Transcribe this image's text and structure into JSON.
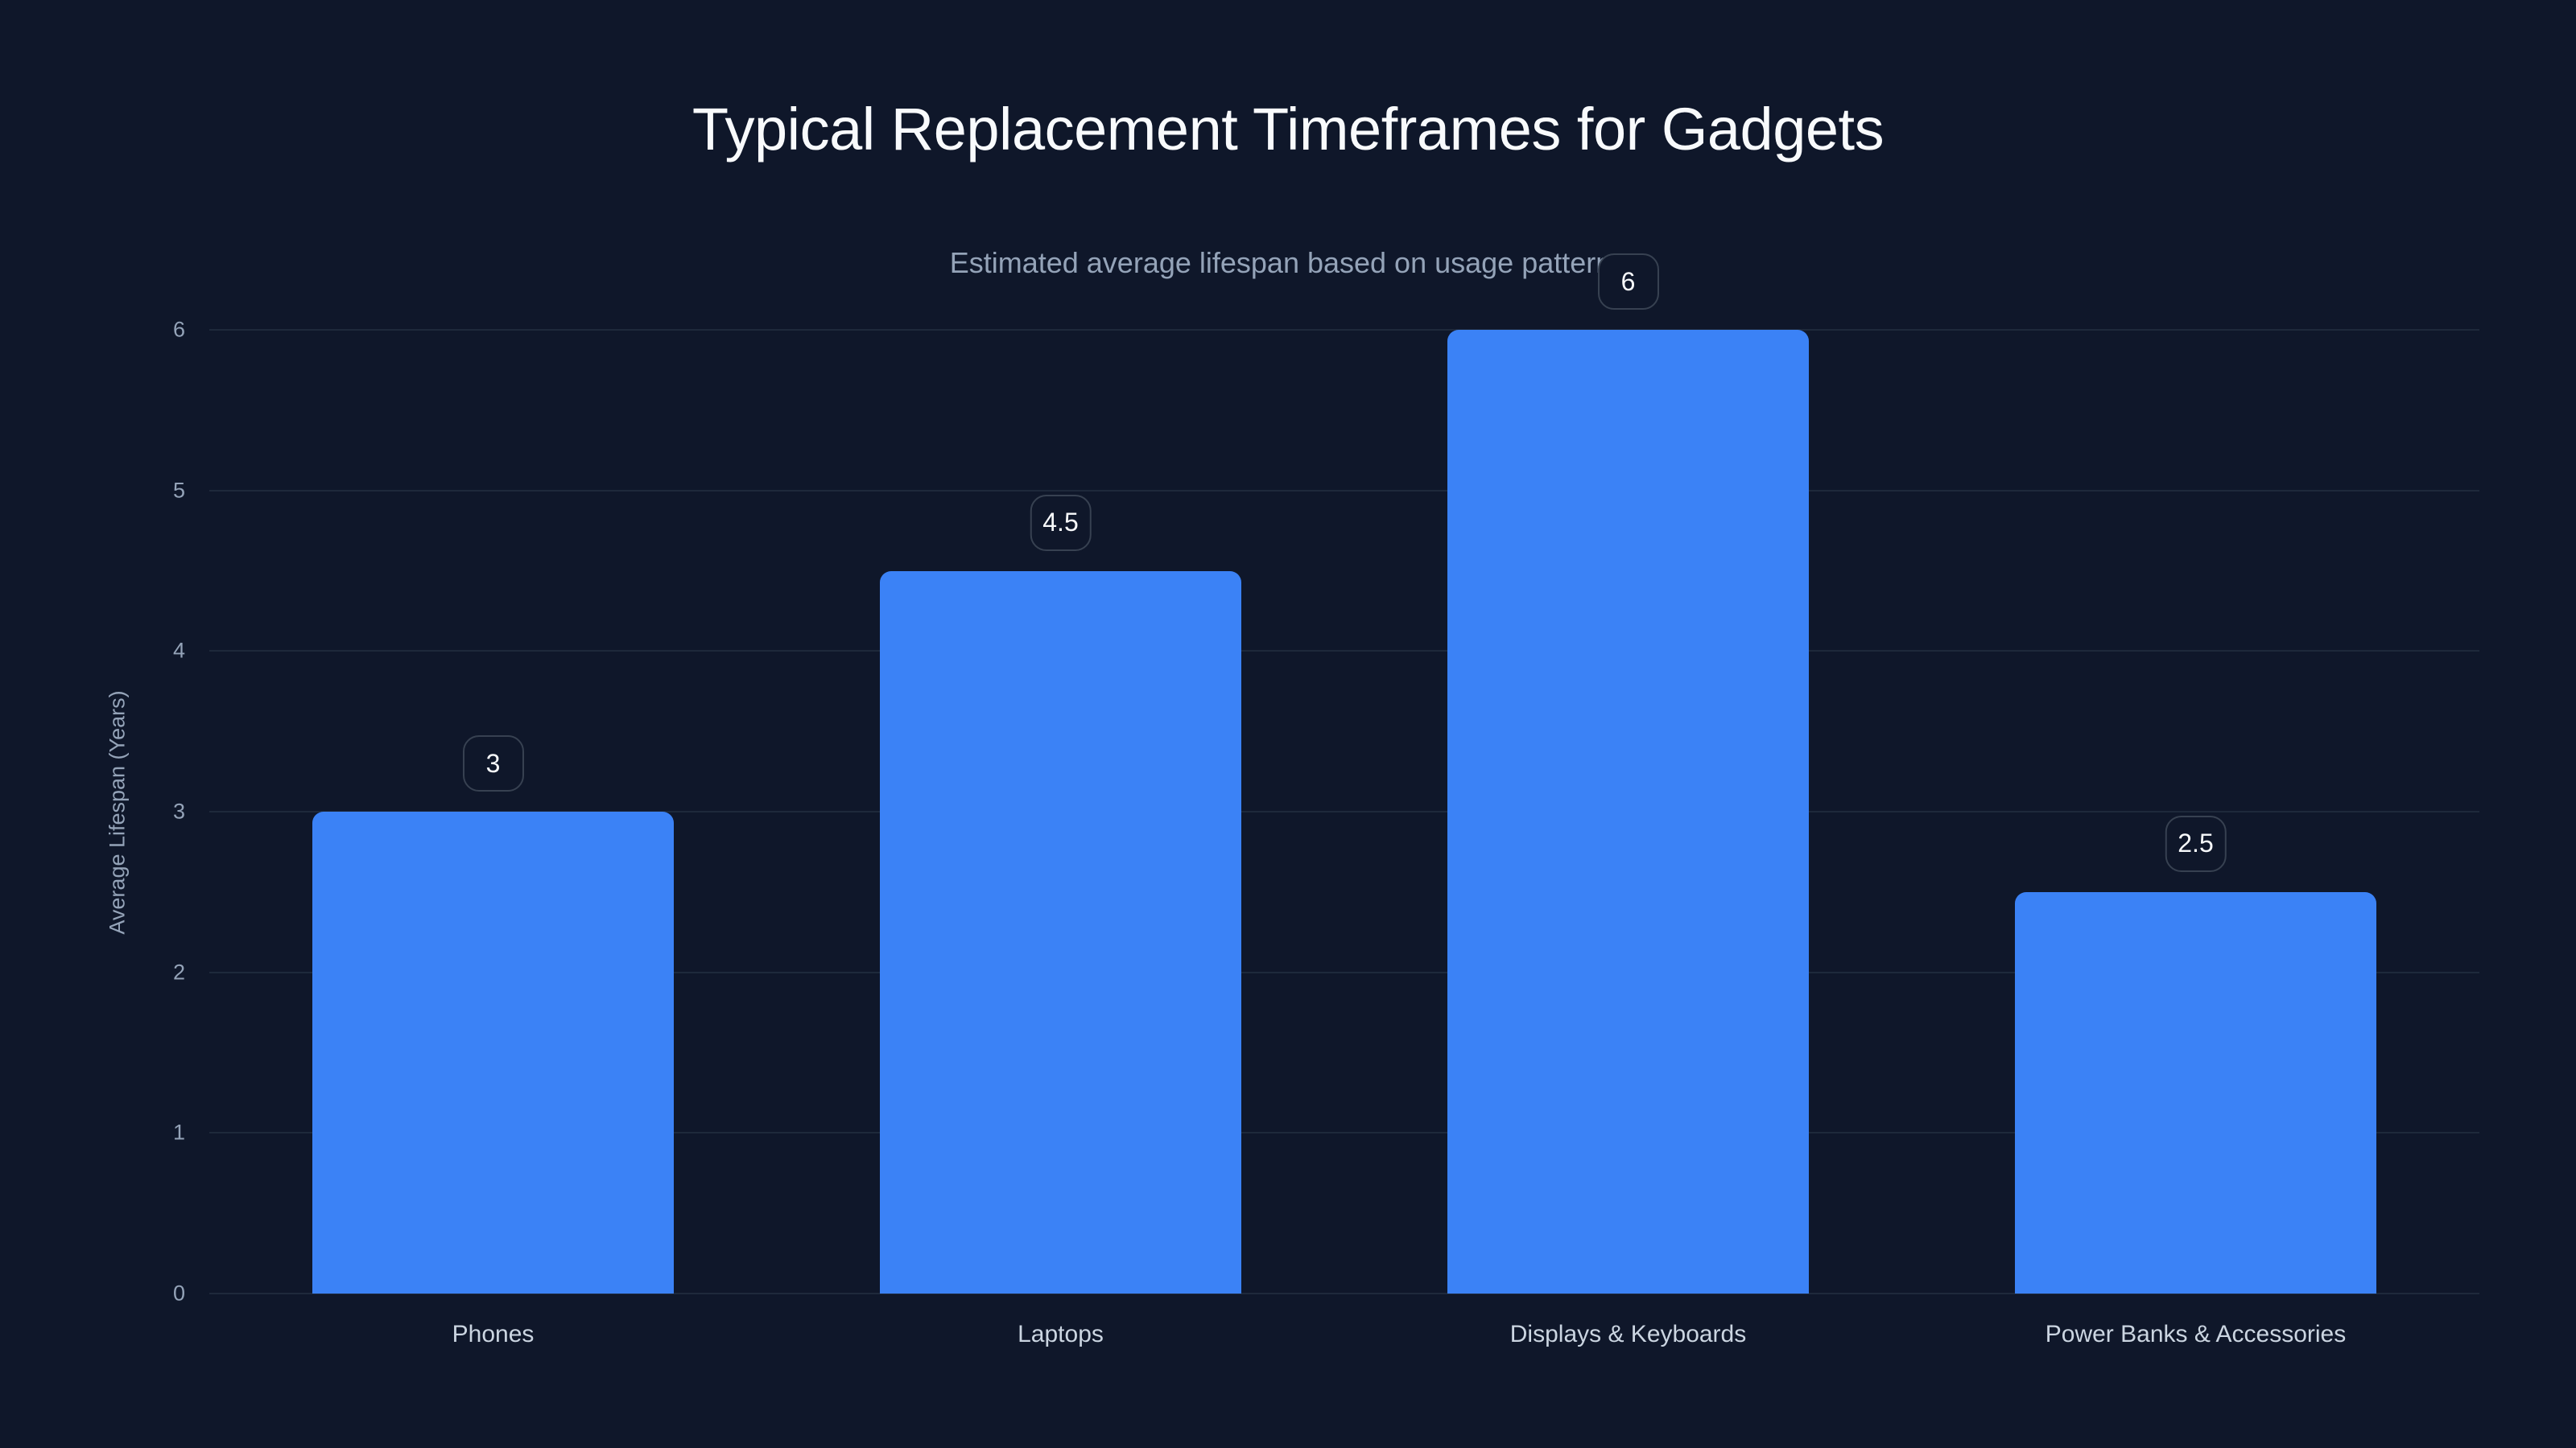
{
  "chart_data": {
    "type": "bar",
    "title": "Typical Replacement Timeframes for Gadgets",
    "subtitle": "Estimated average lifespan based on usage patterns",
    "xlabel": "",
    "ylabel": "Average Lifespan (Years)",
    "categories": [
      "Phones",
      "Laptops",
      "Displays & Keyboards",
      "Power Banks & Accessories"
    ],
    "values": [
      3,
      4.5,
      6,
      2.5
    ],
    "value_labels": [
      "3",
      "4.5",
      "6",
      "2.5"
    ],
    "ylim": [
      0,
      6
    ],
    "yticks": [
      "0",
      "1",
      "2",
      "3",
      "4",
      "5",
      "6"
    ],
    "grid": true,
    "legend": "none",
    "colors": {
      "bar": "#3b82f6",
      "background": "#0f172a",
      "grid": "#1e293b"
    }
  }
}
